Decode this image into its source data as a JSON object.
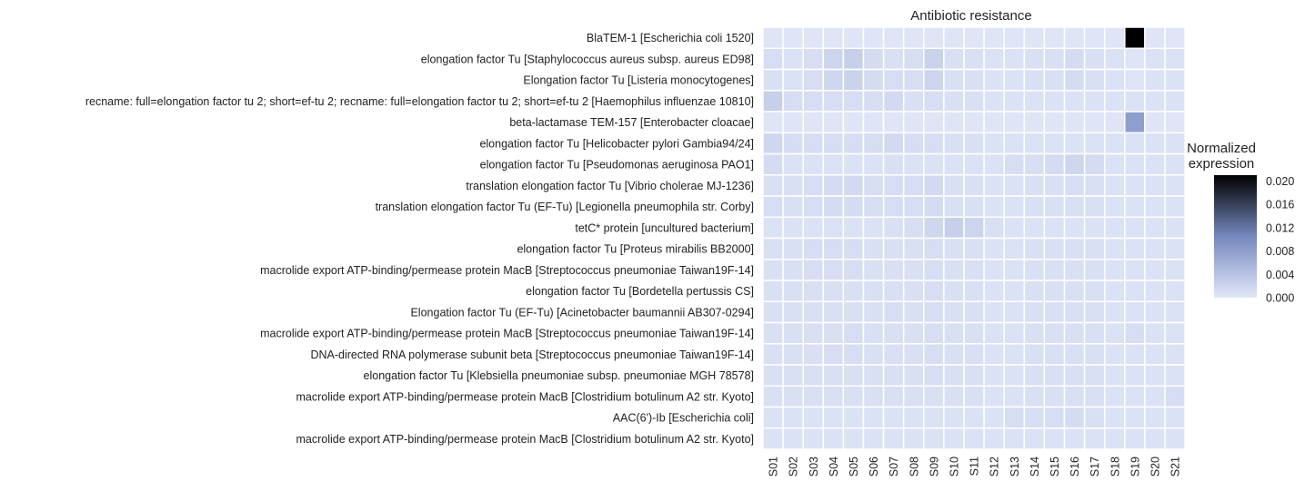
{
  "chart_data": {
    "type": "heatmap",
    "title": "Antibiotic resistance",
    "colorbar": {
      "label_lines": [
        "Normalized",
        "expression"
      ],
      "range": [
        0,
        0.021
      ],
      "ticks": [
        0.0,
        0.004,
        0.008,
        0.012,
        0.016,
        0.02
      ],
      "tick_labels": [
        "0.000",
        "0.004",
        "0.008",
        "0.012",
        "0.016",
        "0.020"
      ],
      "color_low": "#e1e7f8",
      "color_mid": "#7588bf",
      "color_high": "#000000"
    },
    "columns": [
      "S01",
      "S02",
      "S03",
      "S04",
      "S05",
      "S06",
      "S07",
      "S08",
      "S09",
      "S10",
      "S11",
      "S12",
      "S13",
      "S14",
      "S15",
      "S16",
      "S17",
      "S18",
      "S19",
      "S20",
      "S21"
    ],
    "rows": [
      "BlaTEM-1 [Escherichia coli 1520]",
      "elongation factor Tu [Staphylococcus aureus subsp. aureus ED98]",
      "Elongation factor Tu [Listeria monocytogenes]",
      "recname: full=elongation factor tu 2; short=ef-tu 2; recname: full=elongation factor tu 2; short=ef-tu 2 [Haemophilus influenzae 10810]",
      "beta-lactamase TEM-157 [Enterobacter cloacae]",
      "elongation factor Tu [Helicobacter pylori Gambia94/24]",
      "elongation factor Tu [Pseudomonas aeruginosa PAO1]",
      "translation elongation factor Tu [Vibrio cholerae MJ-1236]",
      "translation elongation factor Tu (EF-Tu) [Legionella pneumophila str. Corby]",
      "tetC* protein [uncultured bacterium]",
      "elongation factor Tu [Proteus mirabilis BB2000]",
      "macrolide export ATP-binding/permease protein MacB [Streptococcus pneumoniae Taiwan19F-14]",
      "elongation factor Tu [Bordetella pertussis CS]",
      "Elongation factor Tu (EF-Tu) [Acinetobacter baumannii AB307-0294]",
      "macrolide export ATP-binding/permease protein MacB [Streptococcus pneumoniae Taiwan19F-14]",
      "DNA-directed RNA polymerase subunit beta [Streptococcus pneumoniae Taiwan19F-14]",
      "elongation factor Tu [Klebsiella pneumoniae subsp. pneumoniae MGH 78578]",
      "macrolide export ATP-binding/permease protein MacB [Clostridium botulinum A2 str. Kyoto]",
      "AAC(6')-Ib [Escherichia coli]",
      "macrolide export ATP-binding/permease protein MacB [Clostridium botulinum A2 str. Kyoto]"
    ],
    "values": [
      [
        0.0002,
        0.0002,
        0.0002,
        0.0002,
        0.0002,
        0.0002,
        0.0002,
        0.0002,
        0.0002,
        0.0002,
        0.0002,
        0.0002,
        0.0002,
        0.0002,
        0.0002,
        0.0002,
        0.0002,
        0.0002,
        0.021,
        0.0002,
        0.0002
      ],
      [
        0.001,
        0.0005,
        0.001,
        0.002,
        0.0025,
        0.0012,
        0.0008,
        0.001,
        0.0022,
        0.0008,
        0.0008,
        0.0005,
        0.0005,
        0.0008,
        0.0008,
        0.0012,
        0.0008,
        0.0005,
        0.0002,
        0.0005,
        0.0005
      ],
      [
        0.0008,
        0.0005,
        0.001,
        0.0018,
        0.0022,
        0.0012,
        0.001,
        0.001,
        0.002,
        0.0008,
        0.0008,
        0.0005,
        0.0005,
        0.0008,
        0.0008,
        0.0012,
        0.0008,
        0.0005,
        0.0002,
        0.0005,
        0.0005
      ],
      [
        0.0025,
        0.001,
        0.001,
        0.001,
        0.001,
        0.001,
        0.0015,
        0.0008,
        0.001,
        0.0008,
        0.0008,
        0.0005,
        0.0005,
        0.0005,
        0.0005,
        0.0005,
        0.0005,
        0.0005,
        0.0005,
        0.0005,
        0.0005
      ],
      [
        0.0002,
        0.0002,
        0.0002,
        0.0002,
        0.0002,
        0.0002,
        0.0002,
        0.0002,
        0.0002,
        0.0002,
        0.0002,
        0.0002,
        0.0002,
        0.0002,
        0.0002,
        0.0002,
        0.0002,
        0.0002,
        0.008,
        0.0002,
        0.0002
      ],
      [
        0.0018,
        0.001,
        0.001,
        0.001,
        0.001,
        0.001,
        0.0015,
        0.001,
        0.001,
        0.0008,
        0.0008,
        0.0005,
        0.0005,
        0.0005,
        0.0005,
        0.0005,
        0.0005,
        0.0005,
        0.0005,
        0.0005,
        0.0005
      ],
      [
        0.0012,
        0.0005,
        0.0005,
        0.0005,
        0.0005,
        0.0005,
        0.0008,
        0.0005,
        0.0005,
        0.0005,
        0.0005,
        0.0005,
        0.001,
        0.001,
        0.0012,
        0.0018,
        0.0012,
        0.0005,
        0.0005,
        0.0005,
        0.0005
      ],
      [
        0.0008,
        0.0008,
        0.001,
        0.0012,
        0.0015,
        0.001,
        0.001,
        0.001,
        0.0015,
        0.0008,
        0.0008,
        0.0005,
        0.0005,
        0.0008,
        0.0008,
        0.001,
        0.0008,
        0.0005,
        0.0005,
        0.0005,
        0.0005
      ],
      [
        0.001,
        0.0008,
        0.001,
        0.0012,
        0.0012,
        0.001,
        0.001,
        0.001,
        0.0012,
        0.0008,
        0.0008,
        0.0005,
        0.0005,
        0.0008,
        0.0008,
        0.0008,
        0.0008,
        0.0005,
        0.0005,
        0.0005,
        0.0005
      ],
      [
        0.0005,
        0.0005,
        0.0005,
        0.0005,
        0.0005,
        0.0005,
        0.0008,
        0.001,
        0.0018,
        0.0025,
        0.002,
        0.0008,
        0.0005,
        0.0005,
        0.0005,
        0.0005,
        0.0005,
        0.0005,
        0.0005,
        0.0005,
        0.0005
      ],
      [
        0.0008,
        0.0008,
        0.001,
        0.001,
        0.001,
        0.0008,
        0.0008,
        0.0008,
        0.001,
        0.0008,
        0.0008,
        0.0005,
        0.0005,
        0.0008,
        0.0008,
        0.0008,
        0.0008,
        0.0005,
        0.0005,
        0.0005,
        0.0005
      ],
      [
        0.0008,
        0.0008,
        0.001,
        0.001,
        0.001,
        0.0008,
        0.0008,
        0.0008,
        0.001,
        0.0008,
        0.0008,
        0.0005,
        0.0005,
        0.0008,
        0.0008,
        0.0008,
        0.0008,
        0.0005,
        0.0005,
        0.0005,
        0.0005
      ],
      [
        0.0008,
        0.0008,
        0.0008,
        0.0008,
        0.0008,
        0.0008,
        0.0008,
        0.0008,
        0.001,
        0.0008,
        0.0008,
        0.0005,
        0.0005,
        0.0008,
        0.0008,
        0.0008,
        0.0008,
        0.0005,
        0.0005,
        0.0005,
        0.0005
      ],
      [
        0.0008,
        0.0008,
        0.0008,
        0.0008,
        0.0008,
        0.0008,
        0.001,
        0.0008,
        0.001,
        0.0008,
        0.0008,
        0.0005,
        0.0005,
        0.0008,
        0.0008,
        0.0008,
        0.0008,
        0.0005,
        0.0005,
        0.0005,
        0.0005
      ],
      [
        0.0008,
        0.0008,
        0.0008,
        0.0008,
        0.001,
        0.0008,
        0.0008,
        0.0008,
        0.001,
        0.0008,
        0.0008,
        0.0005,
        0.0005,
        0.0008,
        0.0008,
        0.0008,
        0.0008,
        0.0005,
        0.001,
        0.0005,
        0.0005
      ],
      [
        0.0008,
        0.0008,
        0.0008,
        0.001,
        0.001,
        0.0008,
        0.0008,
        0.0008,
        0.001,
        0.0008,
        0.0008,
        0.0005,
        0.0005,
        0.0008,
        0.0008,
        0.0008,
        0.0008,
        0.0005,
        0.0005,
        0.0005,
        0.0005
      ],
      [
        0.0008,
        0.0008,
        0.0008,
        0.0008,
        0.0008,
        0.0008,
        0.0008,
        0.0008,
        0.001,
        0.0008,
        0.0008,
        0.0005,
        0.0005,
        0.0008,
        0.0008,
        0.0008,
        0.0008,
        0.0005,
        0.0005,
        0.0005,
        0.0005
      ],
      [
        0.0008,
        0.0008,
        0.0008,
        0.0008,
        0.0008,
        0.0008,
        0.0008,
        0.0008,
        0.0008,
        0.0008,
        0.0008,
        0.0005,
        0.0005,
        0.0008,
        0.0008,
        0.0008,
        0.0008,
        0.0005,
        0.0005,
        0.0005,
        0.001
      ],
      [
        0.0005,
        0.0005,
        0.0005,
        0.0005,
        0.0005,
        0.0005,
        0.0005,
        0.0005,
        0.0005,
        0.0005,
        0.0005,
        0.0005,
        0.001,
        0.001,
        0.001,
        0.0012,
        0.0008,
        0.0005,
        0.0005,
        0.0005,
        0.0005
      ],
      [
        0.0005,
        0.0005,
        0.0005,
        0.0005,
        0.0005,
        0.0005,
        0.0005,
        0.0005,
        0.0005,
        0.0005,
        0.0005,
        0.0005,
        0.0005,
        0.0005,
        0.0005,
        0.0005,
        0.0005,
        0.0005,
        0.0005,
        0.0005,
        0.0005
      ]
    ]
  }
}
